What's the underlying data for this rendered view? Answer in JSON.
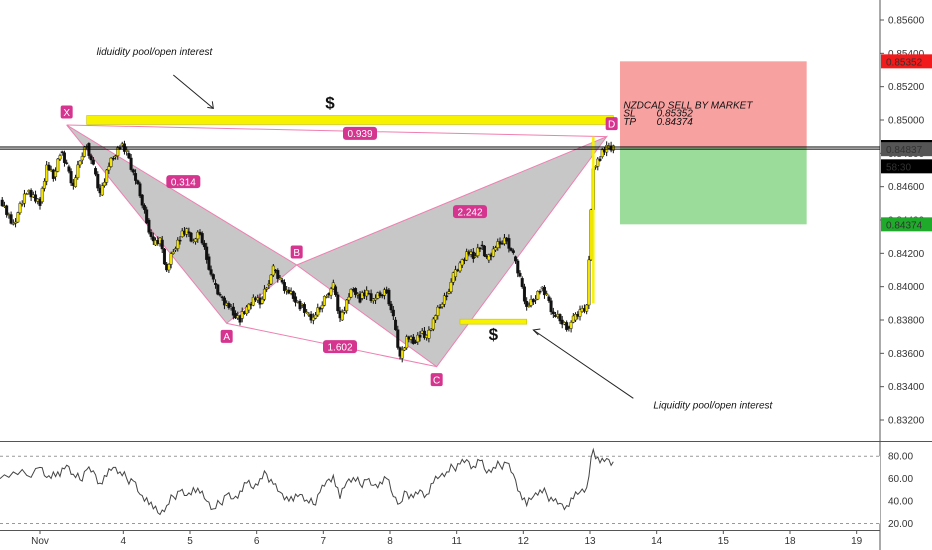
{
  "chart_data": {
    "type": "candlestick",
    "colors": {
      "up": "#f4e500",
      "down": "#111111",
      "pattern_fill": "#bdbdbd",
      "pattern_line": "#ef7fb0",
      "badge": "#d5358f",
      "zone_yellow": "#f7f200",
      "sl_zone": "#f8a1a1",
      "tp_zone": "#9bdc9b",
      "sl_tag": "#f21a1a",
      "tp_tag": "#1faa2c",
      "price_tag": "#000000",
      "timer_tag": "#444444"
    },
    "price_axis": {
      "ylim": [
        0.8308,
        0.8572
      ],
      "ticks": [
        "0.85600",
        "0.85400",
        "0.85200",
        "0.85000",
        "0.84800",
        "0.84600",
        "0.84400",
        "0.84200",
        "0.84000",
        "0.83800",
        "0.83600",
        "0.83400",
        "0.83200"
      ],
      "tick_values": [
        0.856,
        0.854,
        0.852,
        0.85,
        0.848,
        0.846,
        0.844,
        0.842,
        0.84,
        0.838,
        0.836,
        0.834,
        0.832
      ],
      "tags": [
        {
          "name": "sl-price-tag",
          "label": "0.85352",
          "value": 0.85352
        },
        {
          "name": "last-price-tag",
          "label": "0.84838",
          "value": 0.84838
        },
        {
          "name": "bid-price-tag",
          "label": "0.84837",
          "value": 0.84825
        },
        {
          "name": "countdown-tag",
          "label": "58:30",
          "value": 0.84722
        },
        {
          "name": "tp-price-tag",
          "label": "0.84374",
          "value": 0.84374
        }
      ]
    },
    "x_axis": {
      "labels": [
        "Nov",
        "4",
        "5",
        "6",
        "7",
        "8",
        "11",
        "12",
        "13",
        "14",
        "15",
        "18",
        "19"
      ],
      "positions": [
        0,
        12.5,
        22.5,
        32.5,
        42.5,
        52.5,
        62.5,
        72.5,
        82.5,
        92.5,
        102.5,
        112.5,
        122.5
      ],
      "xlim": [
        -6,
        126
      ]
    },
    "ohlc_close_path": [
      [
        -6,
        0.8452
      ],
      [
        -4,
        0.8438
      ],
      [
        -2,
        0.8457
      ],
      [
        0,
        0.8451
      ],
      [
        1,
        0.8473
      ],
      [
        2,
        0.8466
      ],
      [
        3,
        0.8481
      ],
      [
        4,
        0.8472
      ],
      [
        5,
        0.846
      ],
      [
        6,
        0.8476
      ],
      [
        7,
        0.8486
      ],
      [
        8,
        0.8471
      ],
      [
        9,
        0.8455
      ],
      [
        10,
        0.847
      ],
      [
        11,
        0.8478
      ],
      [
        12,
        0.8485
      ],
      [
        13,
        0.848
      ],
      [
        14,
        0.8468
      ],
      [
        15,
        0.8455
      ],
      [
        16,
        0.844
      ],
      [
        17,
        0.8425
      ],
      [
        18,
        0.8428
      ],
      [
        19,
        0.841
      ],
      [
        20,
        0.8422
      ],
      [
        21,
        0.843
      ],
      [
        22,
        0.8433
      ],
      [
        23,
        0.8427
      ],
      [
        24,
        0.8432
      ],
      [
        25,
        0.8418
      ],
      [
        26,
        0.8402
      ],
      [
        27,
        0.8394
      ],
      [
        28,
        0.839
      ],
      [
        29,
        0.8384
      ],
      [
        30,
        0.8381
      ],
      [
        31,
        0.8386
      ],
      [
        32,
        0.8393
      ],
      [
        33,
        0.839
      ],
      [
        34,
        0.8401
      ],
      [
        35,
        0.841
      ],
      [
        36,
        0.8404
      ],
      [
        37,
        0.8398
      ],
      [
        38,
        0.8394
      ],
      [
        39,
        0.8389
      ],
      [
        40,
        0.8383
      ],
      [
        41,
        0.8381
      ],
      [
        42,
        0.8387
      ],
      [
        43,
        0.8396
      ],
      [
        44,
        0.84
      ],
      [
        45,
        0.838
      ],
      [
        46,
        0.8392
      ],
      [
        47,
        0.8399
      ],
      [
        48,
        0.8393
      ],
      [
        49,
        0.8396
      ],
      [
        50,
        0.8392
      ],
      [
        51,
        0.8395
      ],
      [
        52,
        0.8398
      ],
      [
        53,
        0.838
      ],
      [
        54,
        0.8357
      ],
      [
        55,
        0.837
      ],
      [
        56,
        0.8367
      ],
      [
        57,
        0.8372
      ],
      [
        58,
        0.8369
      ],
      [
        59,
        0.838
      ],
      [
        60,
        0.8388
      ],
      [
        61,
        0.8396
      ],
      [
        62,
        0.8406
      ],
      [
        63,
        0.8413
      ],
      [
        64,
        0.8421
      ],
      [
        65,
        0.8418
      ],
      [
        66,
        0.8425
      ],
      [
        67,
        0.8416
      ],
      [
        68,
        0.8422
      ],
      [
        69,
        0.8426
      ],
      [
        70,
        0.8429
      ],
      [
        71,
        0.8418
      ],
      [
        72,
        0.8405
      ],
      [
        73,
        0.8388
      ],
      [
        74,
        0.8392
      ],
      [
        75,
        0.8399
      ],
      [
        76,
        0.8394
      ],
      [
        77,
        0.8383
      ],
      [
        78,
        0.838
      ],
      [
        79,
        0.8376
      ],
      [
        80,
        0.838
      ],
      [
        81,
        0.8385
      ],
      [
        82,
        0.8389
      ],
      [
        83,
        0.8472
      ],
      [
        84,
        0.8478
      ],
      [
        85,
        0.8483
      ],
      [
        86,
        0.8484
      ]
    ],
    "pattern": {
      "points": [
        {
          "label": "X",
          "x": 4.0,
          "y": 0.8497
        },
        {
          "label": "A",
          "x": 28.0,
          "y": 0.8378
        },
        {
          "label": "B",
          "x": 38.5,
          "y": 0.8413
        },
        {
          "label": "C",
          "x": 59.5,
          "y": 0.8352
        },
        {
          "label": "D",
          "x": 85.0,
          "y": 0.849
        }
      ],
      "ratios": [
        {
          "label": "0.314",
          "between": "X-B",
          "x": 21.5,
          "y": 0.8463
        },
        {
          "label": "1.602",
          "between": "A-C",
          "x": 45.0,
          "y": 0.8364
        },
        {
          "label": "2.242",
          "between": "B-D",
          "x": 64.5,
          "y": 0.8445
        },
        {
          "label": "0.939",
          "between": "X-D",
          "x": 48.0,
          "y": 0.8492
        }
      ]
    },
    "zones": [
      {
        "name": "top-liquidity-zone",
        "x0": 7,
        "x1": 86,
        "y": 0.85
      },
      {
        "name": "bottom-liquidity-zone",
        "x0": 63,
        "x1": 73,
        "y": 0.8379
      }
    ],
    "vertical_yellow": {
      "x": 83.0,
      "y0": 0.839,
      "y1": 0.849
    },
    "position": {
      "x0": 87,
      "x1": 115,
      "entry": 0.84838,
      "sl": 0.85352,
      "tp": 0.84374
    },
    "horizontal_lines": [
      0.84838,
      0.84825
    ],
    "annotations": {
      "title": "NZDCAD SELL BY MARKET",
      "sl_label": "SL",
      "sl_value": "0.85352",
      "tp_label": "TP",
      "tp_value": "0.84374",
      "top_note": "liduidity pool/open interest",
      "bottom_note": "Liquidity pool/open interest",
      "dollar_top": "$",
      "dollar_bottom": "$"
    },
    "rsi": {
      "ylim": [
        16,
        90
      ],
      "ticks": [
        "80.00",
        "60.00",
        "40.00",
        "20.00"
      ],
      "tick_values": [
        80,
        60,
        40,
        20
      ],
      "values": [
        [
          -6,
          60
        ],
        [
          -4,
          66
        ],
        [
          -2,
          63
        ],
        [
          0,
          70
        ],
        [
          1,
          61
        ],
        [
          2,
          66
        ],
        [
          3,
          62
        ],
        [
          4,
          72
        ],
        [
          5,
          64
        ],
        [
          6,
          59
        ],
        [
          7,
          68
        ],
        [
          8,
          67
        ],
        [
          9,
          56
        ],
        [
          10,
          62
        ],
        [
          11,
          70
        ],
        [
          12,
          66
        ],
        [
          13,
          60
        ],
        [
          14,
          58
        ],
        [
          15,
          46
        ],
        [
          16,
          43
        ],
        [
          17,
          33
        ],
        [
          18,
          28
        ],
        [
          19,
          36
        ],
        [
          20,
          44
        ],
        [
          21,
          49
        ],
        [
          22,
          45
        ],
        [
          23,
          52
        ],
        [
          24,
          47
        ],
        [
          25,
          40
        ],
        [
          26,
          33
        ],
        [
          27,
          38
        ],
        [
          28,
          46
        ],
        [
          29,
          42
        ],
        [
          30,
          49
        ],
        [
          31,
          56
        ],
        [
          32,
          51
        ],
        [
          33,
          60
        ],
        [
          34,
          64
        ],
        [
          35,
          55
        ],
        [
          36,
          48
        ],
        [
          37,
          44
        ],
        [
          38,
          40
        ],
        [
          39,
          46
        ],
        [
          40,
          41
        ],
        [
          41,
          37
        ],
        [
          42,
          48
        ],
        [
          43,
          58
        ],
        [
          44,
          63
        ],
        [
          45,
          42
        ],
        [
          46,
          57
        ],
        [
          47,
          61
        ],
        [
          48,
          55
        ],
        [
          49,
          59
        ],
        [
          50,
          54
        ],
        [
          51,
          57
        ],
        [
          52,
          60
        ],
        [
          53,
          44
        ],
        [
          54,
          38
        ],
        [
          55,
          48
        ],
        [
          56,
          43
        ],
        [
          57,
          50
        ],
        [
          58,
          46
        ],
        [
          59,
          56
        ],
        [
          60,
          62
        ],
        [
          61,
          66
        ],
        [
          62,
          70
        ],
        [
          63,
          73
        ],
        [
          64,
          77
        ],
        [
          65,
          71
        ],
        [
          66,
          76
        ],
        [
          67,
          65
        ],
        [
          68,
          70
        ],
        [
          69,
          72
        ],
        [
          70,
          74
        ],
        [
          71,
          64
        ],
        [
          72,
          48
        ],
        [
          73,
          36
        ],
        [
          74,
          44
        ],
        [
          75,
          50
        ],
        [
          76,
          46
        ],
        [
          77,
          40
        ],
        [
          78,
          38
        ],
        [
          79,
          36
        ],
        [
          80,
          42
        ],
        [
          81,
          48
        ],
        [
          82,
          52
        ],
        [
          83,
          86
        ],
        [
          84,
          74
        ],
        [
          85,
          78
        ],
        [
          86,
          75
        ]
      ]
    }
  }
}
